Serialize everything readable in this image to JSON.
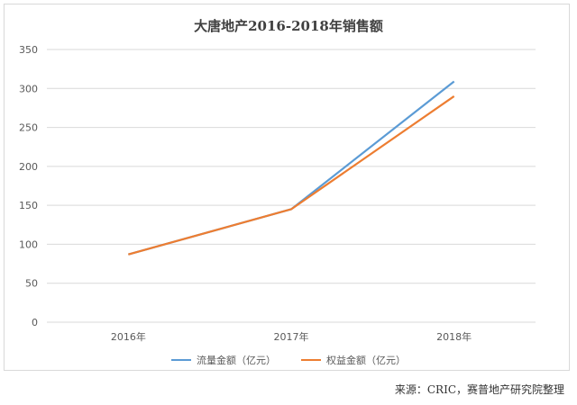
{
  "source_note": "来源：CRIC，赛普地产研究院整理",
  "chart_data": {
    "type": "line",
    "title": "大唐地产2016-2018年销售额",
    "xlabel": "",
    "ylabel": "",
    "categories": [
      "2016年",
      "2017年",
      "2018年"
    ],
    "ylim": [
      0,
      350
    ],
    "yticks": [
      0,
      50,
      100,
      150,
      200,
      250,
      300,
      350
    ],
    "grid": true,
    "legend_position": "bottom",
    "series": [
      {
        "name": "流量金额（亿元）",
        "color": "#5b9bd5",
        "values": [
          87,
          145,
          309
        ]
      },
      {
        "name": "权益金额（亿元）",
        "color": "#ed7d31",
        "values": [
          87,
          145,
          290
        ]
      }
    ]
  }
}
